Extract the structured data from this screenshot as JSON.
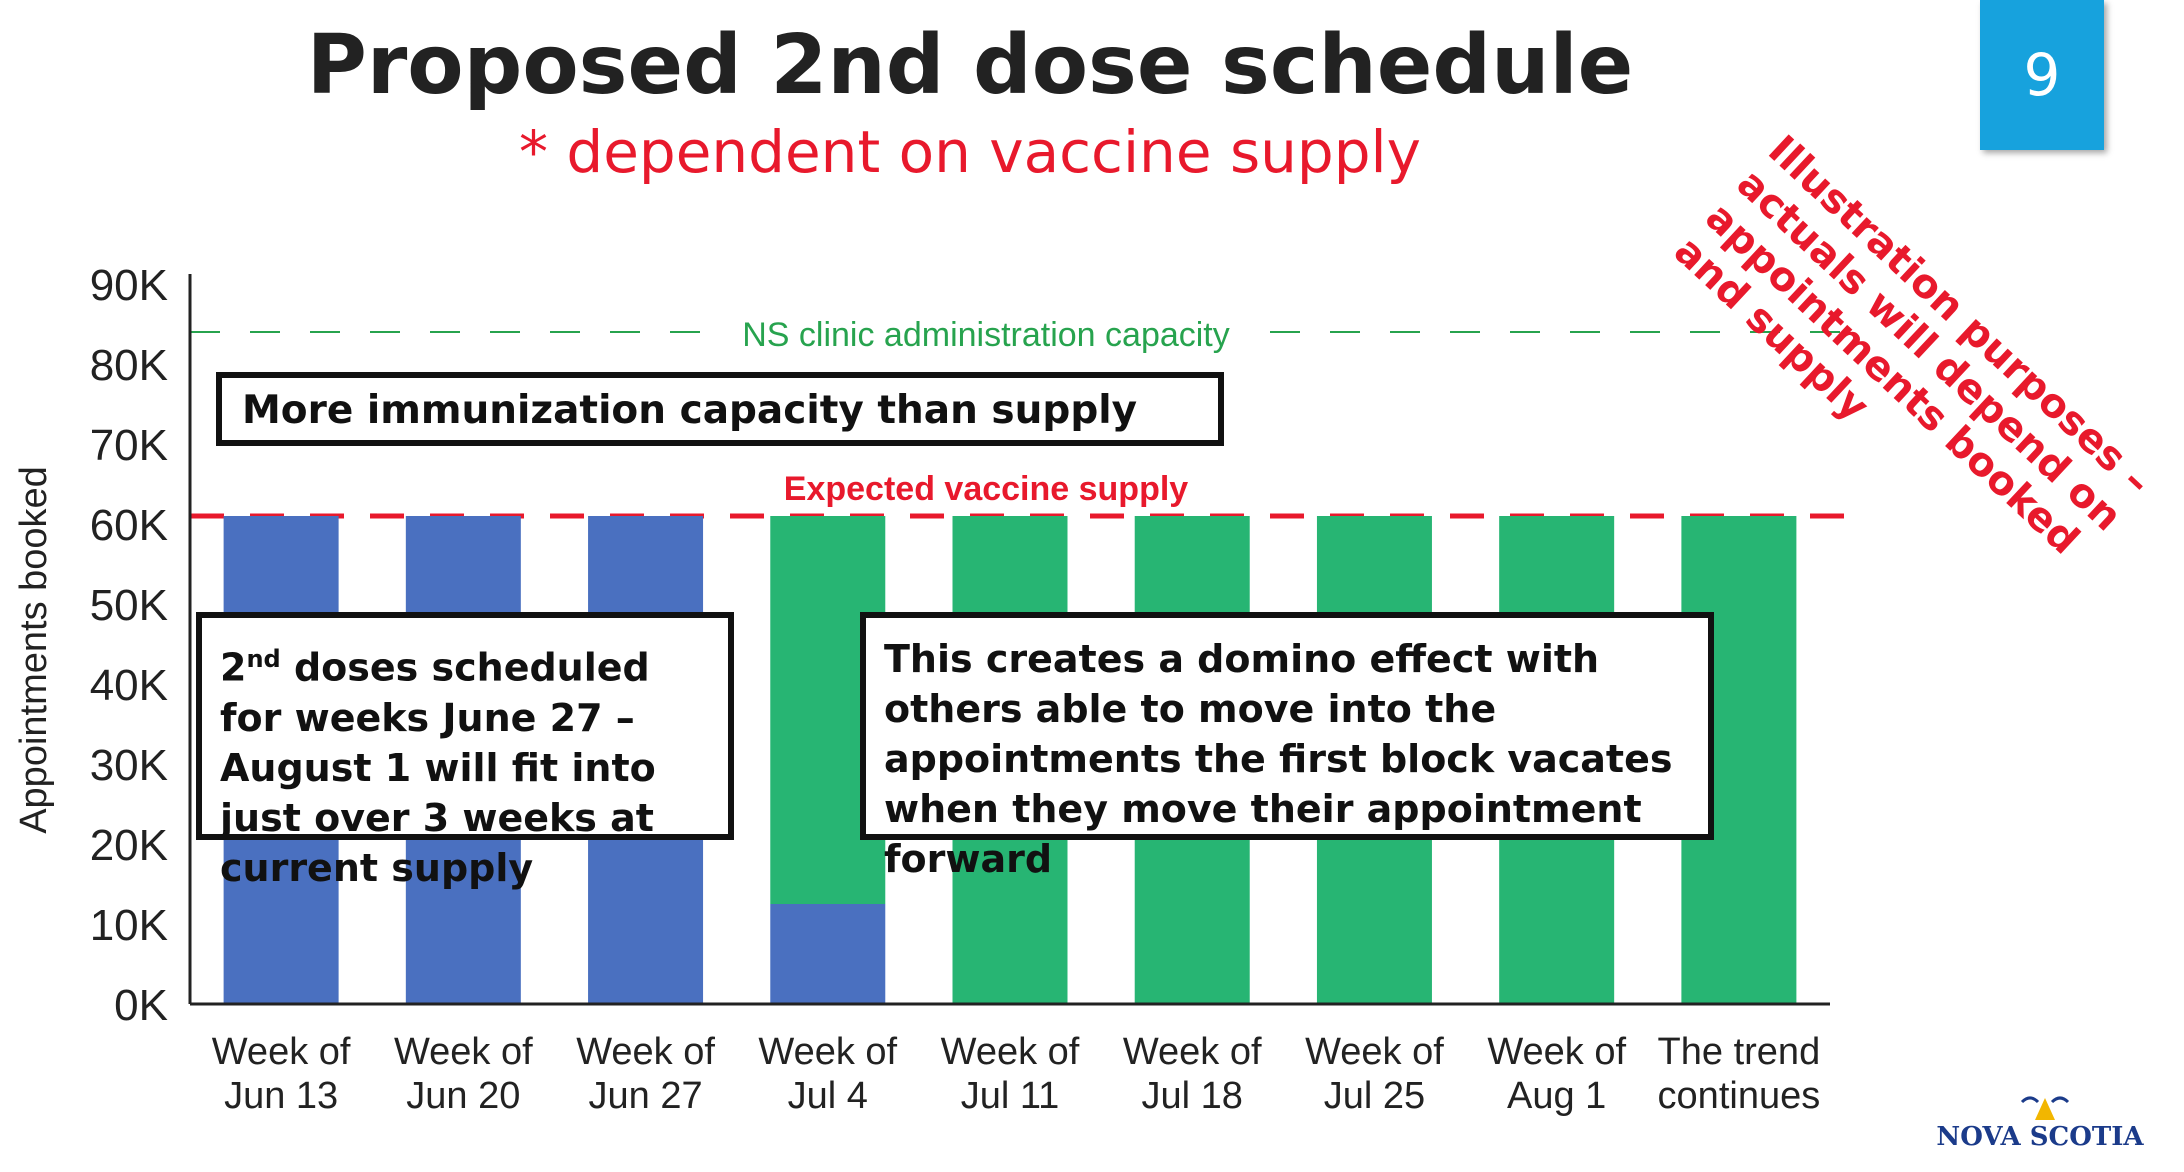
{
  "slide": {
    "title": "Proposed 2nd dose schedule",
    "subtitle": "* dependent on vaccine supply",
    "page_number": "9",
    "logo_text": "NOVA SCOTIA"
  },
  "notes": {
    "capacity_box": "More immunization capacity than supply",
    "fit_box_line1_prefix": "2",
    "fit_box_line1_sup": "nd",
    "fit_box_line1_rest": " doses scheduled for",
    "fit_box_rest": "weeks June 27 – August 1 will fit into just over 3 weeks at current supply",
    "domino_box": "This creates a domino effect with others able to move into the appointments the first block vacates when they move their appointment forward",
    "disclaimer": "Illustration purposes – actuals will depend on appointments booked and supply"
  },
  "colors": {
    "blue": "#4a70c0",
    "green": "#27b573",
    "supply_line": "#e8192c",
    "capacity_line": "#27a34e",
    "badge": "#17a2dd"
  },
  "chart_data": {
    "type": "bar",
    "stacked": true,
    "ylabel": "Appointments booked",
    "ylim": [
      0,
      90000
    ],
    "ytick_labels": [
      "0K",
      "10K",
      "20K",
      "30K",
      "40K",
      "50K",
      "60K",
      "70K",
      "80K",
      "90K"
    ],
    "categories": [
      [
        "Week of",
        "Jun 13"
      ],
      [
        "Week of",
        "Jun 20"
      ],
      [
        "Week of",
        "Jun 27"
      ],
      [
        "Week of",
        "Jul 4"
      ],
      [
        "Week of",
        "Jul 11"
      ],
      [
        "Week of",
        "Jul 18"
      ],
      [
        "Week of",
        "Jul 25"
      ],
      [
        "Week of",
        "Aug 1"
      ],
      [
        "The trend",
        "continues"
      ]
    ],
    "series": [
      {
        "color": "#4a70c0",
        "values": [
          61000,
          61000,
          61000,
          12500,
          0,
          0,
          0,
          0,
          0
        ]
      },
      {
        "color": "#27b573",
        "values": [
          0,
          0,
          0,
          48500,
          61000,
          61000,
          61000,
          61000,
          61000
        ]
      }
    ],
    "reference_lines": [
      {
        "label": "NS clinic administration capacity",
        "value": 84000,
        "color": "#27a34e",
        "style": "dashed"
      },
      {
        "label": "Expected vaccine supply",
        "value": 61000,
        "color": "#e8192c",
        "style": "dashed"
      }
    ],
    "grid": false
  }
}
